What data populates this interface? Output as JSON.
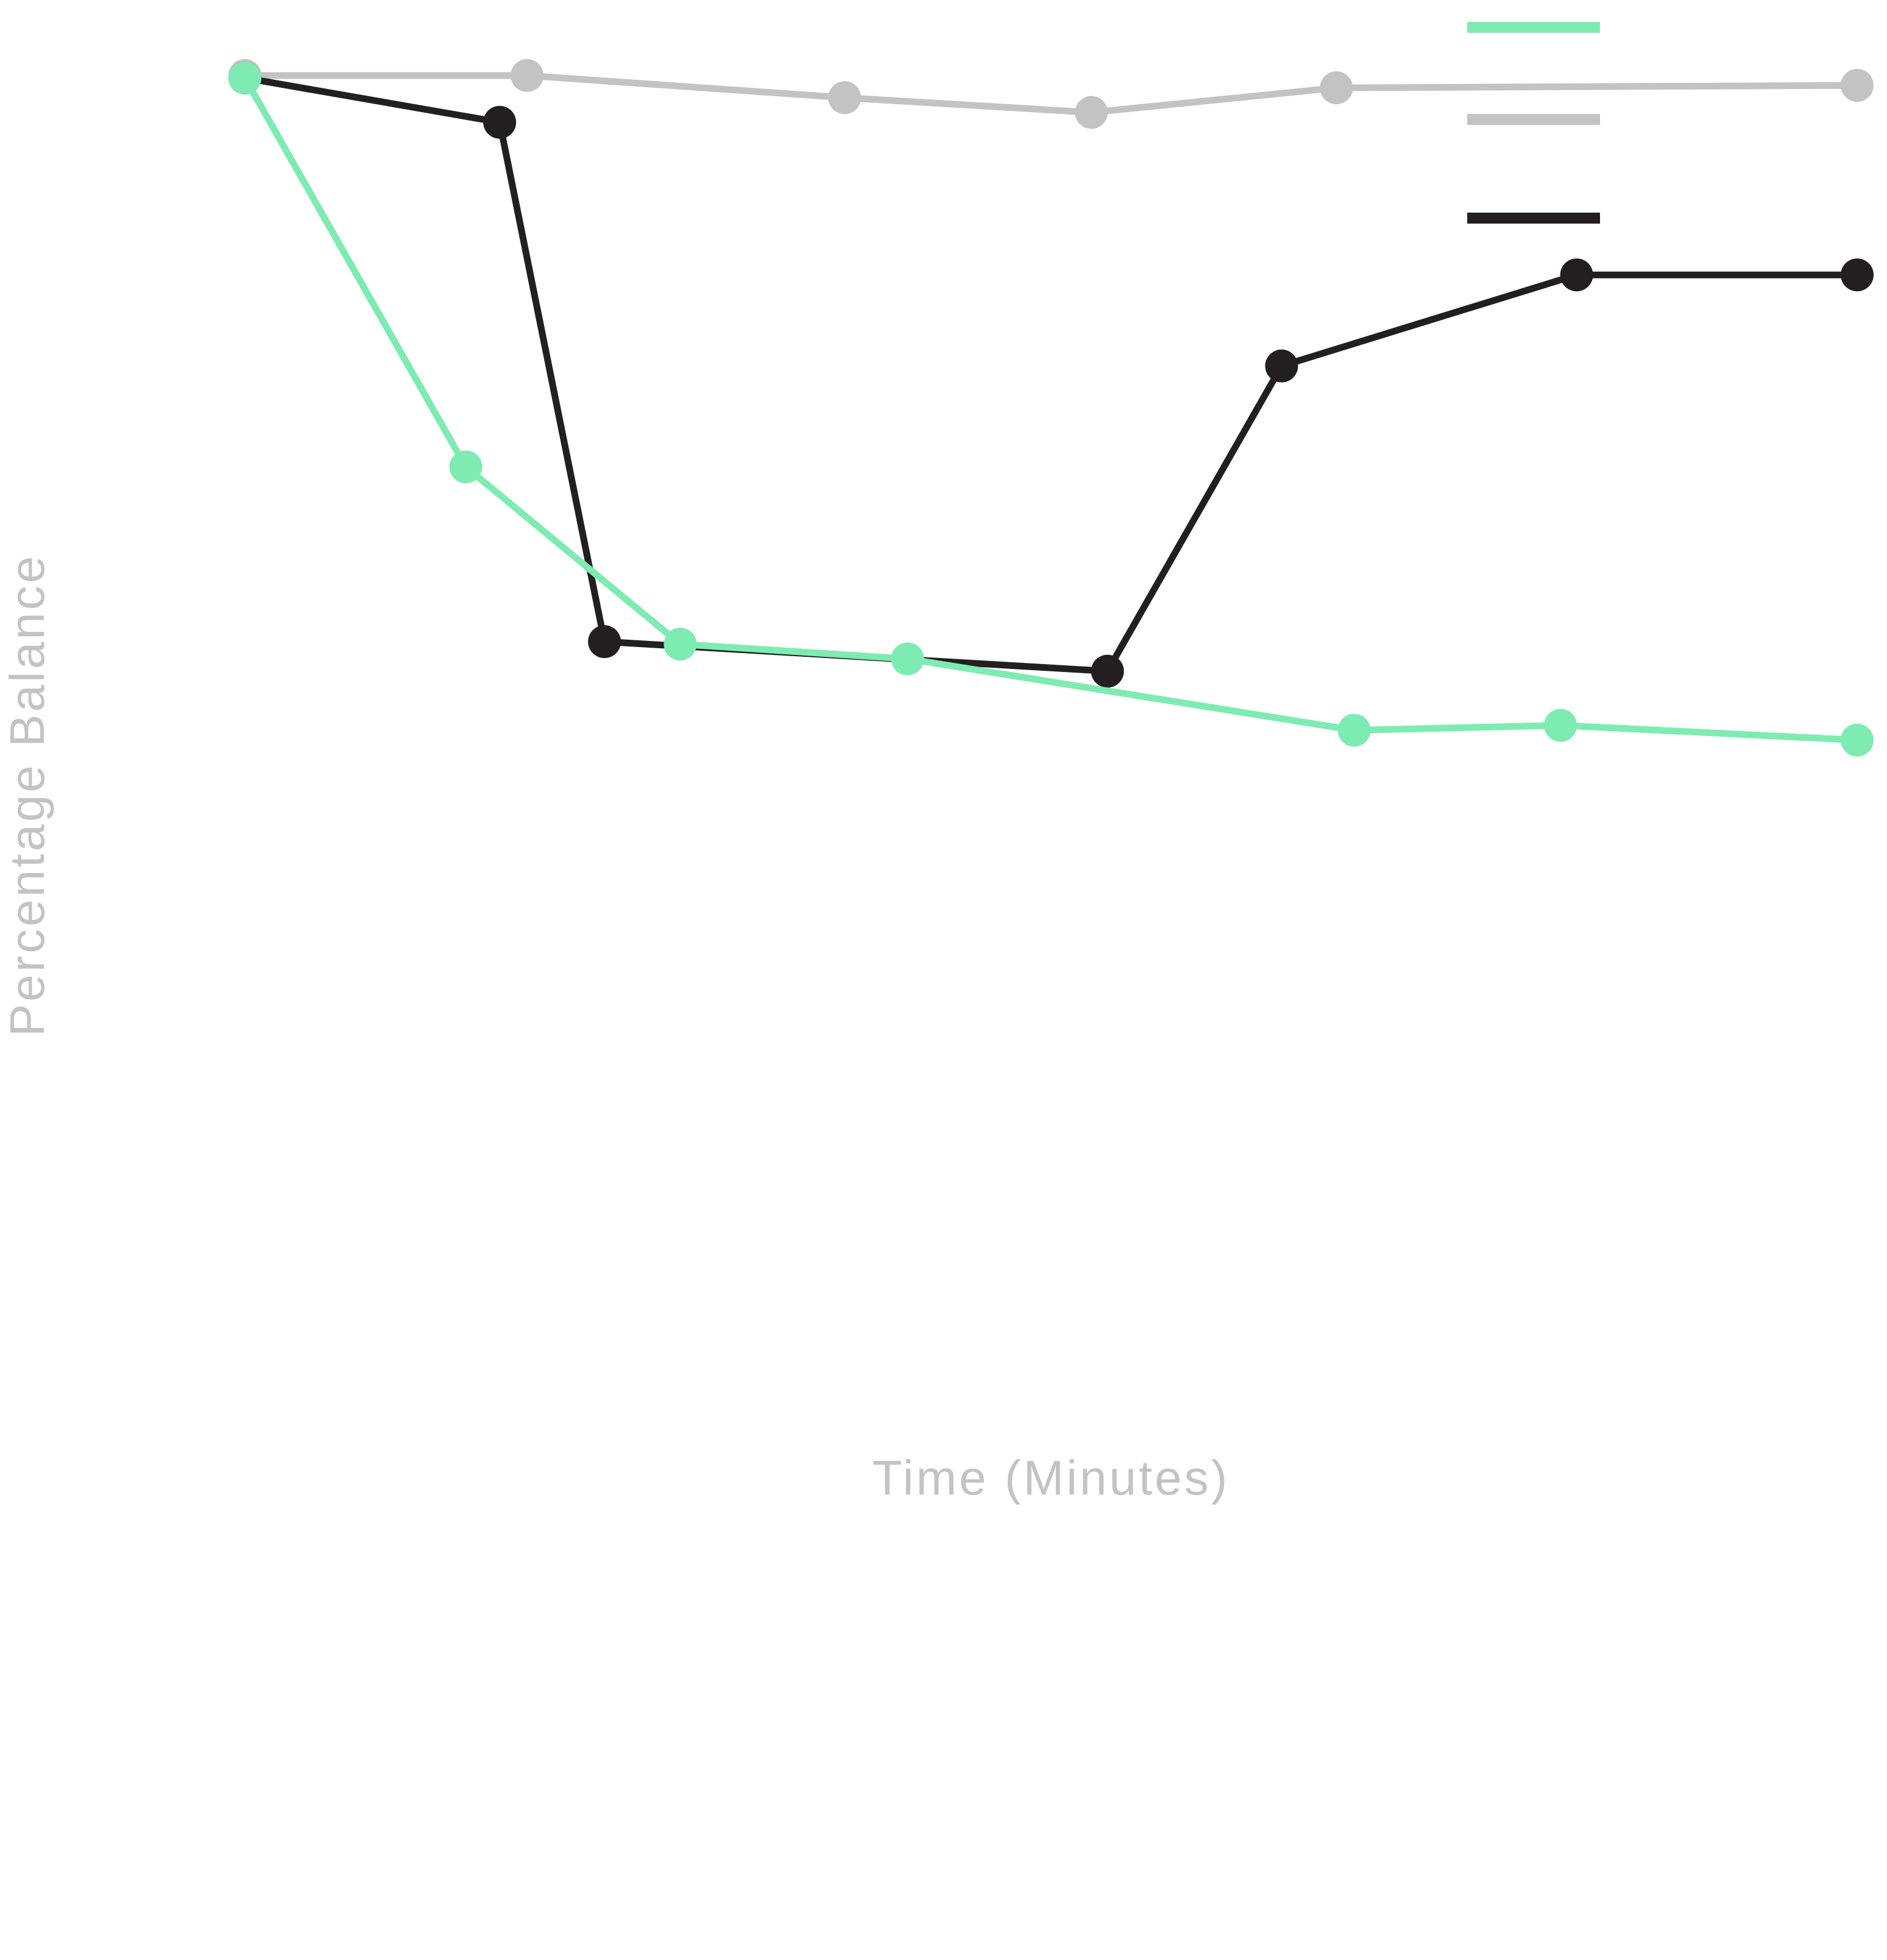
{
  "chart_data": {
    "type": "line",
    "title": "",
    "xlabel": "Time (Minutes)",
    "ylabel": "Percentage Balance",
    "xlim": [
      0,
      100
    ],
    "ylim": [
      0,
      100
    ],
    "grid": false,
    "legend_position": "top-right",
    "series": [
      {
        "color": "#7eecb2",
        "points": [
          [
            0,
            100.0
          ],
          [
            13.7,
            68.4
          ],
          [
            27.0,
            54.0
          ],
          [
            41.1,
            52.8
          ],
          [
            68.8,
            47.0
          ],
          [
            81.6,
            47.4
          ],
          [
            100,
            46.2
          ]
        ]
      },
      {
        "color": "#c4c3c4",
        "points": [
          [
            0,
            100.2
          ],
          [
            17.5,
            100.2
          ],
          [
            37.2,
            98.4
          ],
          [
            52.5,
            97.2
          ],
          [
            67.7,
            99.2
          ],
          [
            100,
            99.4
          ]
        ]
      },
      {
        "color": "#231f20",
        "points": [
          [
            0,
            100.0
          ],
          [
            15.8,
            96.4
          ],
          [
            22.3,
            54.2
          ],
          [
            53.5,
            51.8
          ],
          [
            64.3,
            76.6
          ],
          [
            82.6,
            84.0
          ],
          [
            100,
            84.0
          ]
        ]
      }
    ]
  }
}
